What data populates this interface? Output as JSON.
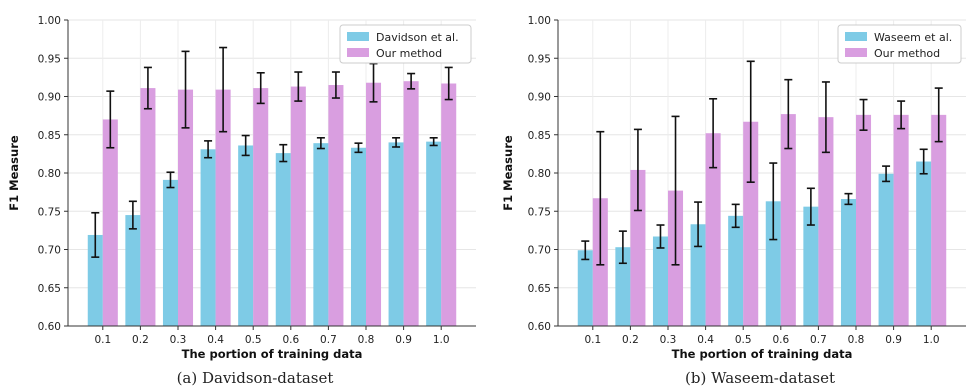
{
  "chart_data": [
    {
      "type": "bar",
      "caption": "(a) Davidson-dataset",
      "xlabel": "The portion of training data",
      "ylabel": "F1 Measure",
      "categories": [
        "0.1",
        "0.2",
        "0.3",
        "0.4",
        "0.5",
        "0.6",
        "0.7",
        "0.8",
        "0.9",
        "1.0"
      ],
      "ylim": [
        0.6,
        1.0
      ],
      "yticks": [
        "0.60",
        "0.65",
        "0.70",
        "0.75",
        "0.80",
        "0.85",
        "0.90",
        "0.95",
        "1.00"
      ],
      "grid": true,
      "legend_position": "top-right",
      "series": [
        {
          "name": "Davidson et al.",
          "color": "#7ecbe6",
          "values": [
            0.719,
            0.745,
            0.791,
            0.831,
            0.836,
            0.826,
            0.839,
            0.833,
            0.84,
            0.841
          ],
          "errors": [
            0.029,
            0.018,
            0.01,
            0.011,
            0.013,
            0.011,
            0.007,
            0.006,
            0.006,
            0.005
          ]
        },
        {
          "name": "Our method",
          "color": "#d99ee0",
          "values": [
            0.87,
            0.911,
            0.909,
            0.909,
            0.911,
            0.913,
            0.915,
            0.918,
            0.92,
            0.917
          ],
          "errors": [
            0.037,
            0.027,
            0.05,
            0.055,
            0.02,
            0.019,
            0.017,
            0.025,
            0.01,
            0.021
          ]
        }
      ]
    },
    {
      "type": "bar",
      "caption": "(b) Waseem-dataset",
      "xlabel": "The portion of training data",
      "ylabel": "F1 Measure",
      "categories": [
        "0.1",
        "0.2",
        "0.3",
        "0.4",
        "0.5",
        "0.6",
        "0.7",
        "0.8",
        "0.9",
        "1.0"
      ],
      "ylim": [
        0.6,
        1.0
      ],
      "yticks": [
        "0.60",
        "0.65",
        "0.70",
        "0.75",
        "0.80",
        "0.85",
        "0.90",
        "0.95",
        "1.00"
      ],
      "grid": true,
      "legend_position": "top-right",
      "series": [
        {
          "name": "Waseem et al.",
          "color": "#7ecbe6",
          "values": [
            0.699,
            0.703,
            0.717,
            0.733,
            0.744,
            0.763,
            0.756,
            0.766,
            0.799,
            0.815
          ],
          "errors": [
            0.012,
            0.021,
            0.015,
            0.029,
            0.015,
            0.05,
            0.024,
            0.007,
            0.01,
            0.016
          ]
        },
        {
          "name": "Our method",
          "color": "#d99ee0",
          "values": [
            0.767,
            0.804,
            0.777,
            0.852,
            0.867,
            0.877,
            0.873,
            0.876,
            0.876,
            0.876
          ],
          "errors": [
            0.087,
            0.053,
            0.097,
            0.045,
            0.079,
            0.045,
            0.046,
            0.02,
            0.018,
            0.035
          ]
        }
      ]
    }
  ]
}
